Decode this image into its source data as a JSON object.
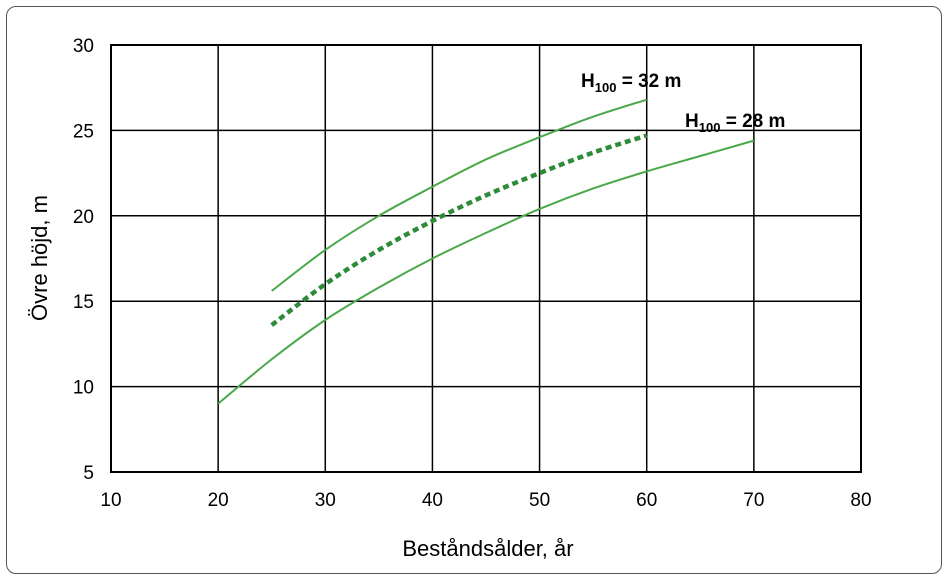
{
  "chart_data": {
    "type": "line",
    "xlabel": "Beståndsålder, år",
    "ylabel": "Övre höjd, m",
    "xlim": [
      10,
      80
    ],
    "ylim": [
      5,
      30
    ],
    "xticks": [
      "10",
      "20",
      "30",
      "40",
      "50",
      "60",
      "70",
      "80"
    ],
    "yticks": [
      "5",
      "10",
      "15",
      "20",
      "25",
      "30"
    ],
    "grid": true,
    "series": [
      {
        "style": "solid",
        "color": "#4aa84a",
        "x": [
          25,
          30,
          35,
          40,
          45,
          50,
          55,
          60
        ],
        "y": [
          15.6,
          18.0,
          20.0,
          21.7,
          23.3,
          24.6,
          25.8,
          26.8
        ]
      },
      {
        "style": "dotted",
        "color": "#2e8b3a",
        "x": [
          25,
          30,
          35,
          40,
          45,
          50,
          55,
          60
        ],
        "y": [
          13.6,
          16.0,
          18.0,
          19.7,
          21.2,
          22.5,
          23.7,
          24.7
        ]
      },
      {
        "style": "solid",
        "color": "#4aa84a",
        "x": [
          20,
          25,
          30,
          35,
          40,
          45,
          50,
          55,
          60,
          65,
          70
        ],
        "y": [
          9.0,
          11.6,
          13.9,
          15.8,
          17.5,
          19.0,
          20.4,
          21.6,
          22.6,
          23.5,
          24.4
        ]
      }
    ],
    "annotations": [
      {
        "main": "H",
        "sub": "100",
        "rest": " = 32 m"
      },
      {
        "main": "H",
        "sub": "100",
        "rest": " = 28 m"
      }
    ]
  }
}
